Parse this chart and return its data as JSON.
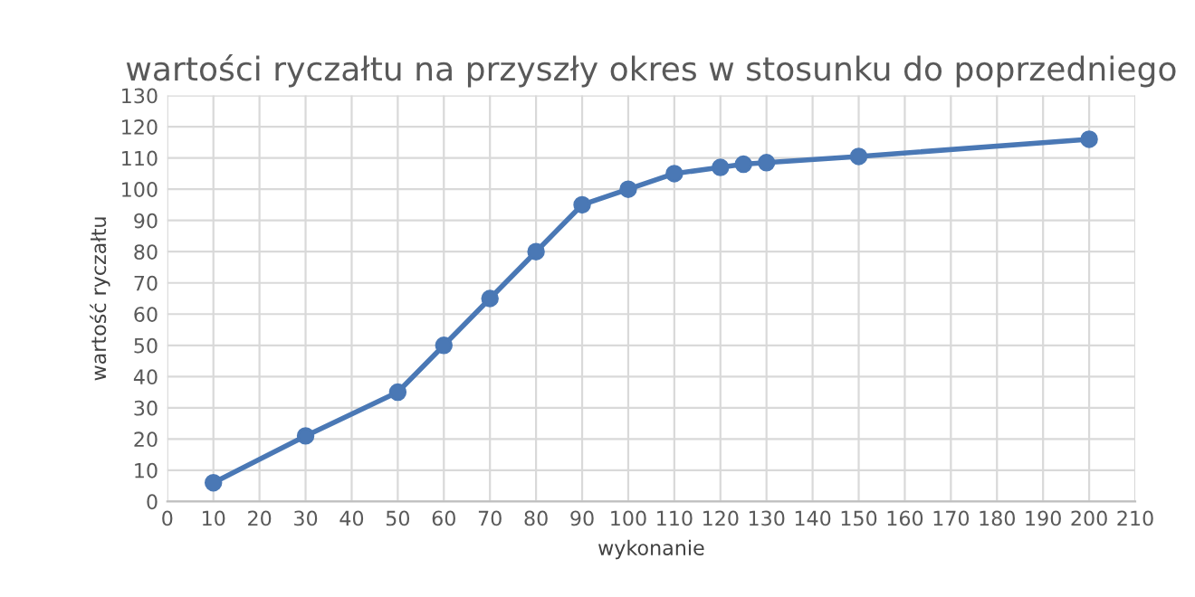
{
  "chart_data": {
    "type": "line",
    "title": "wartości ryczałtu na przyszły okres w stosunku do poprzedniego",
    "xlabel": "wykonanie",
    "ylabel": "wartość ryczałtu",
    "x": [
      10,
      30,
      50,
      60,
      70,
      80,
      90,
      100,
      110,
      120,
      125,
      130,
      150,
      200
    ],
    "series": [
      {
        "color": "#4a78b5",
        "values": [
          6,
          21,
          35,
          50,
          65,
          80,
          95,
          100,
          105,
          107,
          108,
          108.5,
          110.5,
          116
        ]
      }
    ],
    "xlim": [
      0,
      210
    ],
    "xticks": [
      0,
      10,
      20,
      30,
      40,
      50,
      60,
      70,
      80,
      90,
      100,
      110,
      120,
      130,
      140,
      150,
      160,
      170,
      180,
      190,
      200,
      210
    ],
    "ylim": [
      0,
      130
    ],
    "yticks": [
      0,
      10,
      20,
      30,
      40,
      50,
      60,
      70,
      80,
      90,
      100,
      110,
      120,
      130
    ],
    "grid": true,
    "marker": "circle",
    "line_style": "solid",
    "legend": false
  }
}
